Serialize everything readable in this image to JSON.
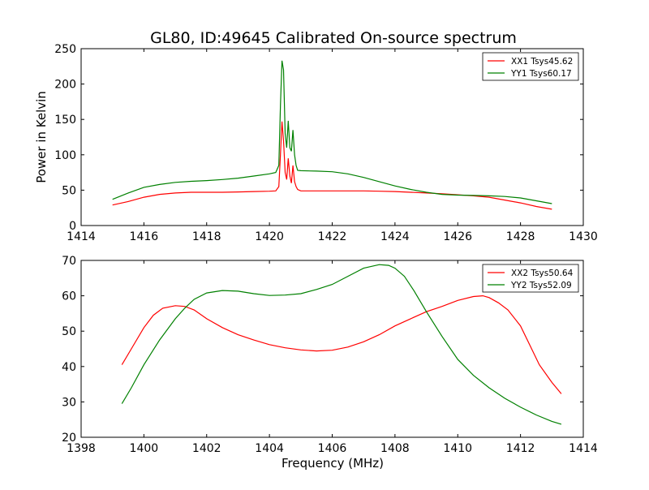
{
  "figure": {
    "title": "GL80, ID:49645 Calibrated On-source spectrum",
    "ylabel": "Power in Kelvin",
    "xlabel": "Frequency (MHz)"
  },
  "chart_data": [
    {
      "type": "line",
      "xlim": [
        1414,
        1430
      ],
      "ylim": [
        0,
        250
      ],
      "xticks": [
        1414,
        1416,
        1418,
        1420,
        1422,
        1424,
        1426,
        1428,
        1430
      ],
      "yticks": [
        0,
        50,
        100,
        150,
        200,
        250
      ],
      "legend": "top-right",
      "series": [
        {
          "name": "XX1 Tsys45.62",
          "color": "#ff0000",
          "x": [
            1415.0,
            1415.5,
            1416.0,
            1416.5,
            1417.0,
            1417.5,
            1418.0,
            1418.5,
            1419.0,
            1419.5,
            1420.0,
            1420.2,
            1420.3,
            1420.35,
            1420.4,
            1420.45,
            1420.5,
            1420.55,
            1420.6,
            1420.65,
            1420.7,
            1420.75,
            1420.8,
            1420.85,
            1420.9,
            1421.0,
            1421.5,
            1422.0,
            1422.5,
            1423.0,
            1423.5,
            1424.0,
            1424.5,
            1425.0,
            1425.5,
            1426.0,
            1426.5,
            1427.0,
            1427.5,
            1428.0,
            1428.5,
            1429.0
          ],
          "y": [
            29,
            34,
            40,
            44,
            46,
            47,
            47,
            47,
            47.5,
            48,
            48.5,
            49,
            55,
            100,
            147,
            120,
            75,
            65,
            95,
            70,
            60,
            85,
            62,
            55,
            51,
            49,
            49,
            49,
            49,
            49,
            48.5,
            48,
            47,
            46,
            45,
            43.5,
            42,
            40,
            36,
            32,
            27,
            23
          ]
        },
        {
          "name": "YY1 Tsys60.17",
          "color": "#008000",
          "x": [
            1415.0,
            1415.5,
            1416.0,
            1416.5,
            1417.0,
            1417.5,
            1418.0,
            1418.5,
            1419.0,
            1419.5,
            1420.0,
            1420.2,
            1420.3,
            1420.35,
            1420.4,
            1420.45,
            1420.5,
            1420.55,
            1420.6,
            1420.65,
            1420.7,
            1420.75,
            1420.8,
            1420.85,
            1420.9,
            1421.0,
            1421.5,
            1422.0,
            1422.5,
            1423.0,
            1423.5,
            1424.0,
            1424.5,
            1425.0,
            1425.5,
            1426.0,
            1426.5,
            1427.0,
            1427.5,
            1428.0,
            1428.5,
            1429.0
          ],
          "y": [
            37,
            46,
            54,
            58,
            61,
            62.5,
            63.5,
            65,
            67,
            70,
            73,
            75,
            85,
            170,
            233,
            220,
            130,
            110,
            148,
            110,
            105,
            135,
            100,
            85,
            78,
            77.5,
            77,
            76,
            73,
            68,
            62,
            56,
            51,
            47,
            44,
            43,
            42.5,
            42,
            41,
            39,
            35,
            31
          ]
        }
      ]
    },
    {
      "type": "line",
      "xlim": [
        1398,
        1414
      ],
      "ylim": [
        20,
        70
      ],
      "xticks": [
        1398,
        1400,
        1402,
        1404,
        1406,
        1408,
        1410,
        1412,
        1414
      ],
      "yticks": [
        20,
        30,
        40,
        50,
        60,
        70
      ],
      "legend": "top-right",
      "series": [
        {
          "name": "XX2 Tsys50.64",
          "color": "#ff0000",
          "x": [
            1399.3,
            1399.6,
            1400.0,
            1400.3,
            1400.6,
            1401.0,
            1401.3,
            1401.6,
            1402.0,
            1402.5,
            1403.0,
            1403.5,
            1404.0,
            1404.5,
            1405.0,
            1405.5,
            1406.0,
            1406.5,
            1407.0,
            1407.5,
            1408.0,
            1408.5,
            1409.0,
            1409.5,
            1410.0,
            1410.5,
            1410.8,
            1411.0,
            1411.3,
            1411.6,
            1412.0,
            1412.3,
            1412.6,
            1413.0,
            1413.3
          ],
          "y": [
            40.5,
            45,
            51,
            54.5,
            56.5,
            57.2,
            57,
            56,
            53.5,
            51,
            49,
            47.5,
            46.2,
            45.3,
            44.7,
            44.4,
            44.6,
            45.5,
            47,
            49,
            51.5,
            53.5,
            55.5,
            57,
            58.7,
            59.8,
            60,
            59.5,
            58,
            56,
            51.5,
            46,
            40.5,
            35.5,
            32.3
          ]
        },
        {
          "name": "YY2 Tsys52.09",
          "color": "#008000",
          "x": [
            1399.3,
            1399.6,
            1400.0,
            1400.5,
            1401.0,
            1401.3,
            1401.6,
            1402.0,
            1402.5,
            1403.0,
            1403.5,
            1404.0,
            1404.5,
            1405.0,
            1405.5,
            1406.0,
            1406.5,
            1407.0,
            1407.5,
            1407.8,
            1408.0,
            1408.3,
            1408.6,
            1409.0,
            1409.5,
            1410.0,
            1410.5,
            1411.0,
            1411.5,
            1412.0,
            1412.5,
            1413.0,
            1413.3
          ],
          "y": [
            29.5,
            34,
            40.5,
            47.5,
            53.5,
            56.5,
            59,
            60.8,
            61.5,
            61.3,
            60.6,
            60.1,
            60.2,
            60.6,
            61.8,
            63.2,
            65.5,
            67.8,
            68.8,
            68.6,
            67.8,
            65.5,
            61.5,
            55.5,
            48.5,
            42,
            37.5,
            34,
            31,
            28.5,
            26.3,
            24.5,
            23.7
          ]
        }
      ]
    }
  ]
}
